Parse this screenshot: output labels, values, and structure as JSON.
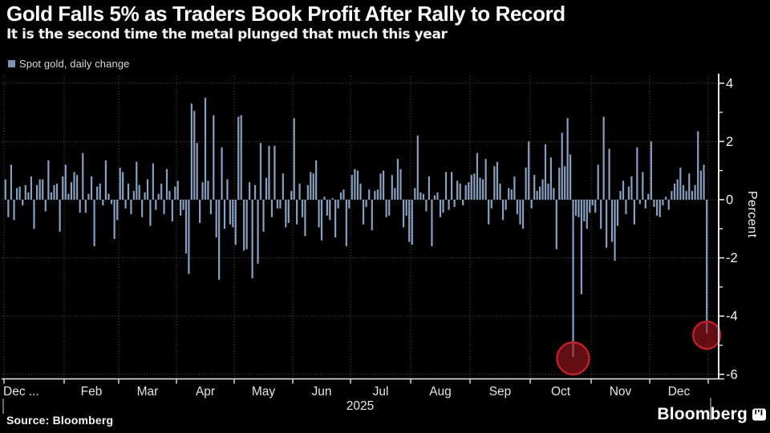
{
  "header": {
    "title": "Gold Falls 5% as Traders Book Profit After Rally to Record",
    "subtitle": "It is the second time the metal plunged that much this year"
  },
  "legend": {
    "label": "Spot gold, daily change",
    "swatch_color": "#7E93B2"
  },
  "chart_data": {
    "type": "bar",
    "title": "Spot gold, daily change",
    "ylabel": "Percent",
    "year_label": "2025",
    "ylim": [
      -6.2,
      4.3
    ],
    "yticks_labeled": [
      4,
      2,
      0,
      -2,
      -4,
      -6
    ],
    "yticks_minor": [
      3,
      1,
      -1,
      -3,
      -5
    ],
    "grid": true,
    "legend_position": "top-left",
    "bar_color": "#87A0C0",
    "months": [
      {
        "label": "Dec ...",
        "values": [
          0.7,
          -0.6,
          1.2,
          -0.7,
          0.4,
          0.45,
          -0.2,
          0.5,
          0.25,
          0.8,
          -1.0,
          0.5,
          0.7,
          0.7,
          -0.4,
          1.35,
          0.25,
          0.5,
          0.55,
          -1.1,
          0.8
        ]
      },
      {
        "label": "Feb",
        "values": [
          1.2,
          0.2,
          0.6,
          0.95,
          0.85,
          -0.45,
          1.6,
          -0.45,
          0.2,
          0.8,
          -1.6,
          0.45,
          0.55,
          -0.2,
          1.35,
          0.2,
          -0.15,
          -1.35,
          -0.7
        ]
      },
      {
        "label": "Mar",
        "values": [
          1.1,
          0.95,
          -0.3,
          0.55,
          -0.5,
          0.3,
          1.3,
          0.5,
          -0.6,
          0.25,
          0.7,
          -0.9,
          1.25,
          -0.35,
          0.2,
          0.55,
          -0.5,
          1.05,
          0.3,
          -0.75,
          0.45
        ]
      },
      {
        "label": "Apr",
        "values": [
          0.65,
          -0.55,
          -0.35,
          -1.85,
          -2.55,
          3.3,
          3.05,
          1.95,
          -0.8,
          0.6,
          3.5,
          0.65,
          -0.5,
          2.9,
          -1.3,
          -2.75,
          1.8,
          -1.0,
          0.7,
          -0.85,
          -0.95
        ]
      },
      {
        "label": "May",
        "values": [
          -1.55,
          2.85,
          2.9,
          -1.75,
          -1.7,
          0.6,
          -2.7,
          0.5,
          -2.2,
          1.95,
          -1.1,
          0.75,
          1.85,
          -0.6,
          1.85,
          -0.3,
          -0.3,
          0.9,
          -0.95,
          -0.8,
          0.3
        ]
      },
      {
        "label": "Jun",
        "values": [
          2.8,
          -0.85,
          0.55,
          -0.6,
          -1.25,
          0.5,
          0.95,
          0.9,
          1.35,
          -0.95,
          -1.4,
          0.1,
          -0.55,
          -0.7,
          0.05,
          -1.3,
          -0.3,
          0.25,
          0.35,
          -1.6,
          -0.3
        ]
      },
      {
        "label": "Jul",
        "values": [
          0.85,
          1.05,
          1.0,
          0.55,
          -0.85,
          -0.25,
          0.35,
          -1.05,
          0.3,
          0.35,
          0.9,
          1.0,
          -0.6,
          -0.55,
          0.85,
          0.4,
          1.4,
          1.05,
          -0.95,
          -0.55,
          -1.45
        ]
      },
      {
        "label": "Aug",
        "values": [
          -1.55,
          0.4,
          2.2,
          0.25,
          0.2,
          -0.4,
          0.8,
          -1.6,
          0.15,
          0.25,
          -0.6,
          -0.45,
          0.95,
          -0.35,
          0.95,
          -0.25,
          0.65,
          0.55,
          -0.2,
          0.5,
          0.6
        ]
      },
      {
        "label": "Sep",
        "values": [
          0.85,
          0.9,
          1.6,
          0.75,
          0.7,
          1.4,
          -0.85,
          -0.3,
          1.15,
          1.3,
          0.55,
          -0.7,
          -0.35,
          0.4,
          0.35,
          0.8,
          -0.5,
          -0.85,
          -1.0,
          1.1,
          2.0
        ]
      },
      {
        "label": "Oct",
        "values": [
          -0.3,
          0.85,
          0.3,
          0.45,
          0.7,
          1.9,
          0.55,
          1.45,
          0.4,
          -1.7,
          1.1,
          2.3,
          1.15,
          2.8,
          1.55,
          -5.4,
          -0.55,
          -0.6,
          -3.25,
          -0.75,
          -1.0,
          -0.45
        ]
      },
      {
        "label": "Nov",
        "values": [
          -0.2,
          -0.45,
          1.2,
          -1.0,
          2.85,
          -1.65,
          1.75,
          -1.45,
          -2.1,
          -0.9,
          0.3,
          0.65,
          -0.5,
          0.45,
          0.8,
          -0.85,
          1.8,
          -0.15,
          0.95,
          -0.3,
          0.2
        ]
      },
      {
        "label": "Dec",
        "values": [
          2.0,
          -0.25,
          -0.55,
          -0.6,
          -0.2,
          0.1,
          -0.35,
          0.3,
          0.55,
          0.7,
          1.1,
          0.5,
          0.3,
          0.9,
          0.3,
          0.5,
          2.35,
          1.0,
          1.2,
          -4.6
        ]
      }
    ],
    "highlights": [
      {
        "month_label": "Oct",
        "month_index": 9,
        "bar_index": 15,
        "value": -5.4,
        "radius": 20,
        "fill": "rgba(158,22,30,0.62)",
        "stroke": "#C0202B"
      },
      {
        "month_label": "Dec",
        "month_index": 11,
        "bar_index": 19,
        "value": -4.6,
        "radius": 17,
        "fill": "rgba(158,22,30,0.62)",
        "stroke": "#C0202B"
      }
    ]
  },
  "footer": {
    "source": "Source: Bloomberg",
    "brand": "Bloomberg"
  }
}
